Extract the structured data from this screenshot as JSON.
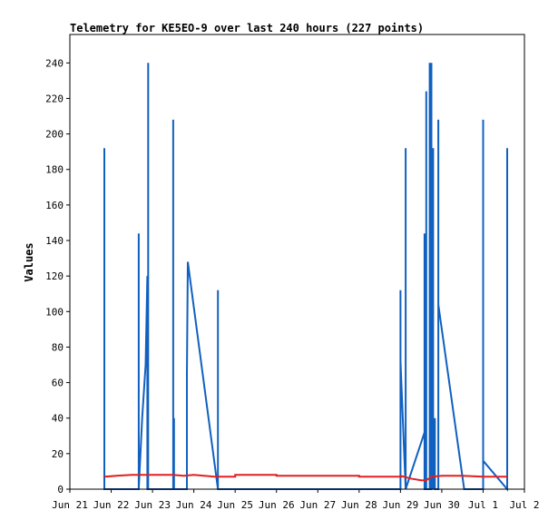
{
  "chart_data": {
    "type": "line",
    "title": "Telemetry for KE5EO-9 over last 240 hours (227 points)",
    "xlabel": "",
    "ylabel": "Values",
    "xlim": [
      "Jun 21",
      "Jul 2"
    ],
    "ylim": [
      0,
      256
    ],
    "x_ticks": [
      "Jun 21",
      "Jun 22",
      "Jun 23",
      "Jun 24",
      "Jun 25",
      "Jun 26",
      "Jun 27",
      "Jun 28",
      "Jun 29",
      "Jun 30",
      "Jul 1",
      "Jul 2"
    ],
    "y_ticks": [
      0,
      20,
      40,
      60,
      80,
      100,
      120,
      140,
      160,
      180,
      200,
      220,
      240
    ],
    "grid": false,
    "legend": "none",
    "series": [
      {
        "color": "#1060c0",
        "points": [
          [
            "Jun 21 20:00",
            0
          ],
          [
            "Jun 21 20:00",
            192
          ],
          [
            "Jun 21 20:00",
            0
          ],
          [
            "Jun 22 16:00",
            0
          ],
          [
            "Jun 22 16:00",
            144
          ],
          [
            "Jun 22 16:00",
            0
          ],
          [
            "Jun 22 18:00",
            40
          ],
          [
            "Jun 22 20:00",
            70
          ],
          [
            "Jun 22 21:00",
            120
          ],
          [
            "Jun 22 21:00",
            0
          ],
          [
            "Jun 22 21:30",
            0
          ],
          [
            "Jun 22 21:30",
            240
          ],
          [
            "Jun 22 21:30",
            0
          ],
          [
            "Jun 23 12:00",
            0
          ],
          [
            "Jun 23 12:00",
            208
          ],
          [
            "Jun 23 12:00",
            0
          ],
          [
            "Jun 23 12:30",
            40
          ],
          [
            "Jun 23 12:30",
            0
          ],
          [
            "Jun 23 20:00",
            0
          ],
          [
            "Jun 23 20:00",
            65
          ],
          [
            "Jun 23 20:30",
            128
          ],
          [
            "Jun 24 14:00",
            0
          ],
          [
            "Jun 24 14:00",
            112
          ],
          [
            "Jun 24 14:00",
            0
          ],
          [
            "Jun 29 00:00",
            0
          ],
          [
            "Jun 29 00:00",
            112
          ],
          [
            "Jun 29 00:00",
            72
          ],
          [
            "Jun 29 03:00",
            0
          ],
          [
            "Jun 29 03:00",
            192
          ],
          [
            "Jun 29 03:00",
            0
          ],
          [
            "Jun 29 14:00",
            32
          ],
          [
            "Jun 29 14:00",
            144
          ],
          [
            "Jun 29 14:00",
            0
          ],
          [
            "Jun 29 15:00",
            0
          ],
          [
            "Jun 29 15:00",
            224
          ],
          [
            "Jun 29 15:00",
            0
          ],
          [
            "Jun 29 17:00",
            0
          ],
          [
            "Jun 29 17:00",
            240
          ],
          [
            "Jun 29 17:00",
            0
          ],
          [
            "Jun 29 18:00",
            0
          ],
          [
            "Jun 29 18:00",
            240
          ],
          [
            "Jun 29 18:00",
            128
          ],
          [
            "Jun 29 19:00",
            0
          ],
          [
            "Jun 29 19:00",
            192
          ],
          [
            "Jun 29 19:00",
            0
          ],
          [
            "Jun 29 20:00",
            40
          ],
          [
            "Jun 29 20:00",
            0
          ],
          [
            "Jun 29 22:00",
            0
          ],
          [
            "Jun 29 22:00",
            208
          ],
          [
            "Jun 29 22:00",
            104
          ],
          [
            "Jun 30 13:00",
            0
          ],
          [
            "Jul 1 00:00",
            0
          ],
          [
            "Jul 1 00:00",
            208
          ],
          [
            "Jul 1 00:00",
            16
          ],
          [
            "Jul 1 14:00",
            0
          ],
          [
            "Jul 1 14:00",
            192
          ],
          [
            "Jul 1 14:00",
            0
          ]
        ]
      },
      {
        "color": "#e02020",
        "points": [
          [
            "Jun 21 20:00",
            7
          ],
          [
            "Jun 22 03:00",
            7.5
          ],
          [
            "Jun 22 12:00",
            8
          ],
          [
            "Jun 23 00:00",
            8
          ],
          [
            "Jun 23 12:00",
            8
          ],
          [
            "Jun 23 18:00",
            7.5
          ],
          [
            "Jun 24 00:00",
            8
          ],
          [
            "Jun 24 12:00",
            7
          ],
          [
            "Jun 25 00:00",
            7
          ],
          [
            "Jun 25 00:00",
            8
          ],
          [
            "Jun 26 00:00",
            8
          ],
          [
            "Jun 26 00:00",
            7.5
          ],
          [
            "Jun 27 00:00",
            7.5
          ],
          [
            "Jun 28 00:00",
            7.5
          ],
          [
            "Jun 28 00:00",
            7
          ],
          [
            "Jun 29 00:00",
            7
          ],
          [
            "Jun 29 00:00",
            7.5
          ],
          [
            "Jun 29 06:00",
            6
          ],
          [
            "Jun 29 12:00",
            5
          ],
          [
            "Jun 29 15:00",
            5
          ],
          [
            "Jun 29 18:00",
            7
          ],
          [
            "Jun 30 00:00",
            7.5
          ],
          [
            "Jun 30 12:00",
            7.5
          ],
          [
            "Jul 1 00:00",
            7
          ],
          [
            "Jul 1 12:00",
            7
          ],
          [
            "Jul 1 14:00",
            7
          ]
        ]
      }
    ]
  }
}
